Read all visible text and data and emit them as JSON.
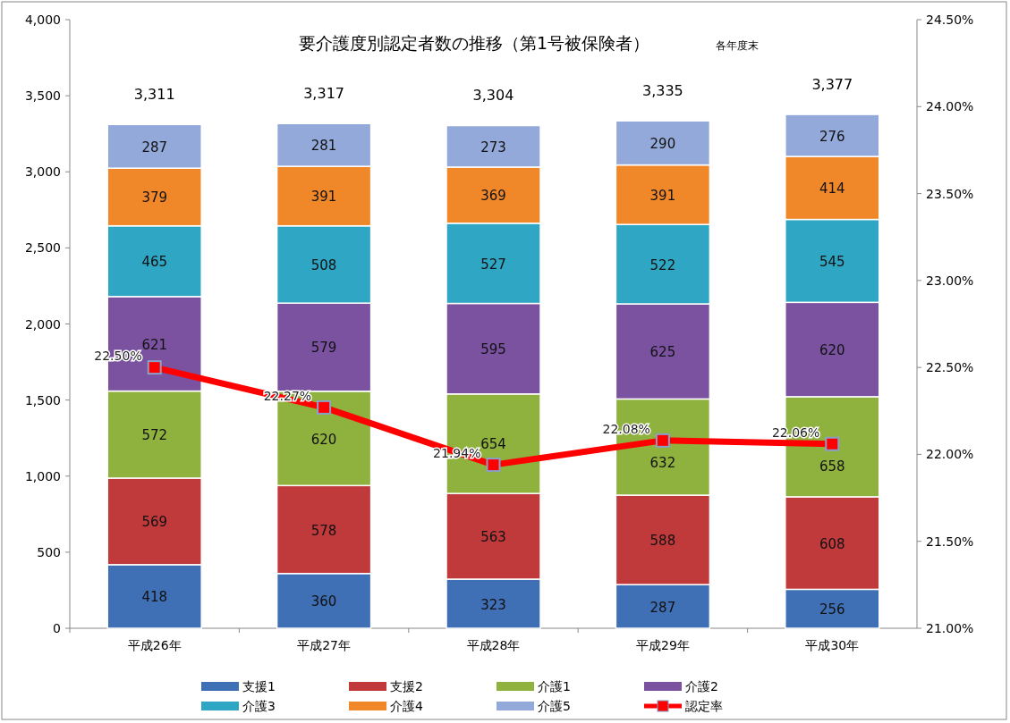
{
  "chart_data": {
    "type": "bar",
    "title": "要介護度別認定者数の推移（第1号被保険者）",
    "subtitle": "各年度末",
    "categories": [
      "平成26年",
      "平成27年",
      "平成28年",
      "平成29年",
      "平成30年"
    ],
    "stacked": true,
    "data_labels": true,
    "totals": [
      "3,311",
      "3,317",
      "3,304",
      "3,335",
      "3,377"
    ],
    "ylim": [
      0,
      4000
    ],
    "yticks": [
      {
        "value": 0,
        "label": "0"
      },
      {
        "value": 500,
        "label": "500"
      },
      {
        "value": 1000,
        "label": "1,000"
      },
      {
        "value": 1500,
        "label": "1,500"
      },
      {
        "value": 2000,
        "label": "2,000"
      },
      {
        "value": 2500,
        "label": "2,500"
      },
      {
        "value": 3000,
        "label": "3,000"
      },
      {
        "value": 3500,
        "label": "3,500"
      },
      {
        "value": 4000,
        "label": "4,000"
      }
    ],
    "y2lim": [
      21,
      24.5
    ],
    "y2ticks": [
      {
        "value": 21,
        "label": "21.00%"
      },
      {
        "value": 21.5,
        "label": "21.50%"
      },
      {
        "value": 22,
        "label": "22.00%"
      },
      {
        "value": 22.5,
        "label": "22.50%"
      },
      {
        "value": 23,
        "label": "23.00%"
      },
      {
        "value": 23.5,
        "label": "23.50%"
      },
      {
        "value": 24,
        "label": "24.00%"
      },
      {
        "value": 24.5,
        "label": "24.50%"
      }
    ],
    "legend": "bottom",
    "series": [
      {
        "name": "支援1",
        "color": "#3f6fb5",
        "values": [
          418,
          360,
          323,
          287,
          256
        ]
      },
      {
        "name": "支援2",
        "color": "#c0393b",
        "values": [
          569,
          578,
          563,
          588,
          608
        ]
      },
      {
        "name": "介護1",
        "color": "#8fb13e",
        "values": [
          572,
          620,
          654,
          632,
          658
        ]
      },
      {
        "name": "介護2",
        "color": "#7a52a0",
        "values": [
          621,
          579,
          595,
          625,
          620
        ]
      },
      {
        "name": "介護3",
        "color": "#2fa6c3",
        "values": [
          465,
          508,
          527,
          522,
          545
        ]
      },
      {
        "name": "介護4",
        "color": "#f0882a",
        "values": [
          379,
          391,
          369,
          391,
          414
        ]
      },
      {
        "name": "介護5",
        "color": "#93a9d9",
        "values": [
          287,
          281,
          273,
          290,
          276
        ]
      },
      {
        "name": "認定率",
        "color": "#ff0000",
        "type": "line",
        "axis": "y2",
        "marker": "square",
        "values": [
          22.5,
          22.27,
          21.94,
          22.08,
          22.06
        ],
        "value_labels": [
          "22.50%",
          "22.27%",
          "21.94%",
          "22.08%",
          "22.06%"
        ]
      }
    ]
  }
}
